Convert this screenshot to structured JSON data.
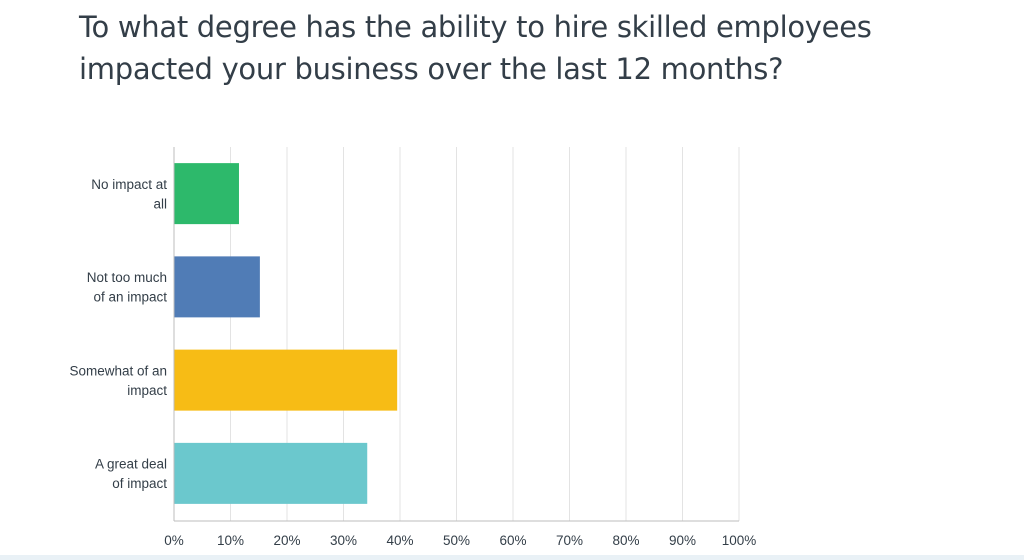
{
  "chart_data": {
    "type": "bar",
    "orientation": "horizontal",
    "title": "To what degree has the ability to hire skilled employees impacted your business over the last 12 months?",
    "categories": [
      [
        "No impact at",
        "all"
      ],
      [
        "Not too much",
        "of an impact"
      ],
      [
        "Somewhat of an",
        "impact"
      ],
      [
        "A great deal",
        "of impact"
      ]
    ],
    "values": [
      11.5,
      15.2,
      39.5,
      34.2
    ],
    "colors": [
      "#2db96b",
      "#507cb6",
      "#f7bc15",
      "#6bc8cd"
    ],
    "xlim": [
      0,
      100
    ],
    "x_ticks": [
      "0%",
      "10%",
      "20%",
      "30%",
      "40%",
      "50%",
      "60%",
      "70%",
      "80%",
      "90%",
      "100%"
    ],
    "grid": true,
    "legend": "none"
  }
}
